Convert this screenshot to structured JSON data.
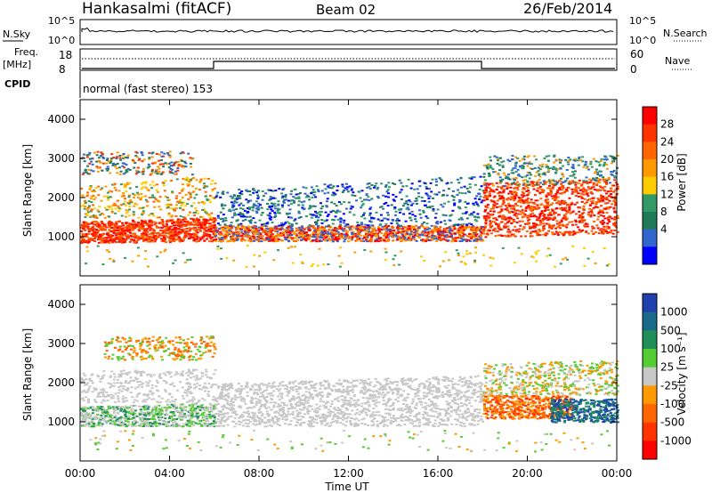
{
  "header": {
    "station": "Hankasalmi (fitACF)",
    "beam": "Beam 02",
    "date": "26/Feb/2014"
  },
  "top_panel": {
    "left_label": "N.Sky",
    "right_label": "N.Search",
    "y_ticks": [
      "10^5",
      "10^0"
    ]
  },
  "freq_panel": {
    "left_label_1": "Freq.",
    "left_label_2": "[MHz]",
    "right_label": "Nave",
    "left_ticks": [
      "18",
      "8"
    ],
    "right_ticks": [
      "60",
      "0"
    ]
  },
  "cpid": {
    "label": "CPID",
    "text": "normal (fast stereo) 153"
  },
  "power_colorbar": {
    "label": "Power [dB]",
    "ticks": [
      "28",
      "24",
      "20",
      "16",
      "12",
      "8",
      "4"
    ],
    "colors": [
      "#ff0000",
      "#ff3300",
      "#ff6600",
      "#ff9900",
      "#ffcc00",
      "#339966",
      "#1f7a5a",
      "#3366cc",
      "#0000ff"
    ]
  },
  "velocity_colorbar": {
    "label": "Velocity [m s⁻¹]",
    "ticks": [
      "1000",
      "500",
      "100",
      "25",
      "-25",
      "-100",
      "-500",
      "-1000"
    ],
    "colors": [
      "#2040b0",
      "#1a6b8a",
      "#1f8f5a",
      "#55cc33",
      "#c8c8c8",
      "#ff9900",
      "#ff6600",
      "#ff3300",
      "#ff0000"
    ]
  },
  "chart_data": {
    "type": "heatmap",
    "xlabel": "Time UT",
    "ylabel": "Slant Range [km]",
    "x_ticks": [
      "00:00",
      "04:00",
      "08:00",
      "12:00",
      "16:00",
      "20:00",
      "00:00"
    ],
    "y_ticks": [
      "1000",
      "2000",
      "3000",
      "4000"
    ],
    "ylim": [
      0,
      4500
    ],
    "xlim_hours": [
      0,
      24
    ],
    "panels": [
      {
        "quantity": "Power [dB]",
        "range": [
          0,
          30
        ]
      },
      {
        "quantity": "Velocity [m s-1]",
        "range": [
          -1000,
          1000
        ]
      }
    ]
  }
}
